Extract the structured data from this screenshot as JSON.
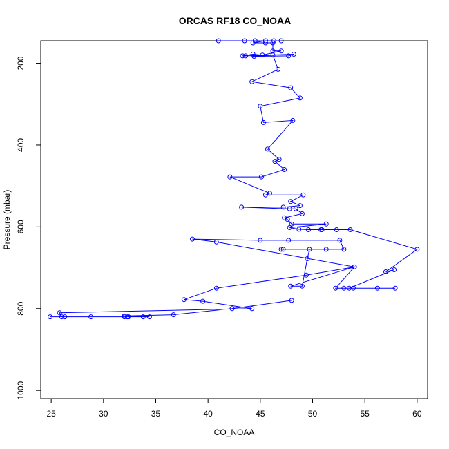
{
  "chart_data": {
    "type": "line",
    "title": "ORCAS RF18 CO_NOAA",
    "xlabel": "CO_NOAA",
    "ylabel": "Pressure (mbar)",
    "xlim": [
      24,
      61
    ],
    "ylim": [
      1020,
      145
    ],
    "y_reversed": true,
    "grid": false,
    "x_ticks": [
      25,
      30,
      35,
      40,
      45,
      50,
      55,
      60
    ],
    "y_ticks": [
      200,
      400,
      600,
      800,
      1000
    ],
    "color": "#0000ff",
    "marker": "open-circle",
    "series": [
      {
        "points": [
          [
            41.0,
            145
          ],
          [
            43.5,
            145
          ],
          [
            44.5,
            145
          ],
          [
            46.3,
            145
          ],
          [
            47.0,
            145
          ],
          [
            45.5,
            145
          ],
          [
            44.3,
            150
          ],
          [
            45.5,
            150
          ],
          [
            46.2,
            150
          ],
          [
            46.2,
            170
          ],
          [
            47.0,
            170
          ],
          [
            45.2,
            180
          ],
          [
            44.3,
            178
          ],
          [
            43.3,
            182
          ],
          [
            43.6,
            182
          ],
          [
            48.2,
            178
          ],
          [
            47.7,
            182
          ],
          [
            44.4,
            183
          ],
          [
            46.2,
            180
          ],
          [
            46.7,
            215
          ],
          [
            44.2,
            245
          ],
          [
            47.9,
            260
          ],
          [
            48.8,
            285
          ],
          [
            45.0,
            305
          ],
          [
            45.3,
            345
          ],
          [
            48.1,
            340
          ],
          [
            45.7,
            410
          ],
          [
            46.8,
            435
          ],
          [
            46.4,
            440
          ],
          [
            47.3,
            460
          ],
          [
            45.1,
            478
          ],
          [
            42.1,
            478
          ],
          [
            45.9,
            518
          ],
          [
            45.5,
            522
          ],
          [
            49.1,
            522
          ],
          [
            47.9,
            538
          ],
          [
            48.8,
            548
          ],
          [
            47.2,
            552
          ],
          [
            43.2,
            552
          ],
          [
            47.8,
            556
          ],
          [
            48.4,
            556
          ],
          [
            49.0,
            568
          ],
          [
            47.3,
            578
          ],
          [
            47.6,
            582
          ],
          [
            48.0,
            593
          ],
          [
            51.3,
            593
          ],
          [
            47.8,
            602
          ],
          [
            48.7,
            606
          ],
          [
            49.6,
            607
          ],
          [
            50.8,
            607
          ],
          [
            50.9,
            607
          ],
          [
            52.3,
            607
          ],
          [
            53.6,
            607
          ],
          [
            60.0,
            655
          ],
          [
            57.0,
            710
          ],
          [
            57.8,
            705
          ],
          [
            53.5,
            750
          ],
          [
            53.9,
            750
          ],
          [
            53.0,
            750
          ],
          [
            56.2,
            750
          ],
          [
            57.9,
            750
          ],
          [
            52.2,
            750
          ],
          [
            54.0,
            698
          ],
          [
            47.9,
            745
          ],
          [
            49.0,
            745
          ],
          [
            49.5,
            678
          ],
          [
            49.7,
            655
          ],
          [
            51.3,
            655
          ],
          [
            47.2,
            655
          ],
          [
            47.0,
            655
          ],
          [
            53.0,
            655
          ],
          [
            52.6,
            633
          ],
          [
            47.7,
            633
          ],
          [
            45.0,
            633
          ],
          [
            38.5,
            630
          ],
          [
            40.8,
            637
          ],
          [
            54.0,
            698
          ],
          [
            49.4,
            718
          ],
          [
            40.8,
            750
          ],
          [
            37.7,
            778
          ],
          [
            39.5,
            782
          ],
          [
            44.2,
            800
          ],
          [
            25.8,
            810
          ],
          [
            26.0,
            820
          ],
          [
            26.3,
            820
          ],
          [
            24.9,
            820
          ],
          [
            28.8,
            820
          ],
          [
            32.0,
            820
          ],
          [
            32.3,
            820
          ],
          [
            32.4,
            820
          ],
          [
            33.8,
            820
          ],
          [
            34.4,
            820
          ],
          [
            32.0,
            818
          ],
          [
            36.7,
            815
          ],
          [
            42.3,
            800
          ],
          [
            48.0,
            780
          ]
        ]
      }
    ]
  }
}
